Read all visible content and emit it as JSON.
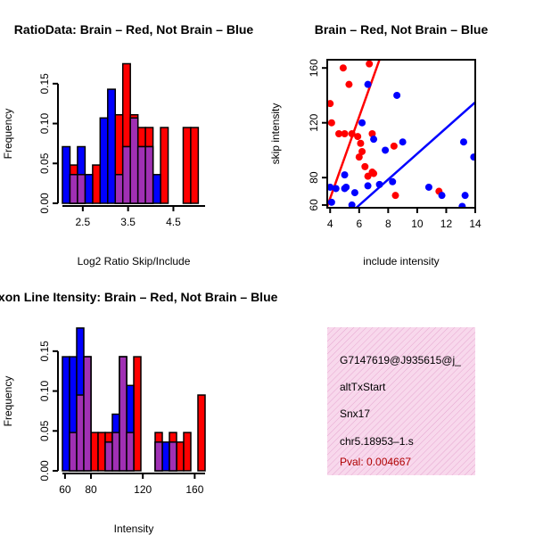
{
  "colors": {
    "red": "#ff0000",
    "blue": "#0000ff",
    "overlap": "#a030b4",
    "info_bg": "#f8d8ec",
    "info_hatch": "#e6a6d0",
    "pval": "#b00000"
  },
  "chart_data": [
    {
      "id": "ratio_hist",
      "type": "bar",
      "title": "RatioData: Brain – Red, Not Brain – Blue",
      "xlabel": "Log2 Ratio Skip/Include",
      "ylabel": "Frequency",
      "xlim": [
        2.05,
        5.2
      ],
      "ylim": [
        0,
        0.18
      ],
      "bin_width": 0.167,
      "bin_starts": [
        2.05,
        2.217,
        2.383,
        2.55,
        2.717,
        2.883,
        3.05,
        3.217,
        3.383,
        3.55,
        3.717,
        3.883,
        4.05,
        4.217,
        4.383,
        4.55,
        4.717,
        4.883
      ],
      "xticks": [
        "2.5",
        "3.5",
        "4.5"
      ],
      "xtick_values": [
        2.5,
        3.5,
        4.5
      ],
      "yticks": [
        "0.00",
        "0.05",
        "0.10",
        "0.15"
      ],
      "ytick_values": [
        0,
        0.05,
        0.1,
        0.15
      ],
      "series": [
        {
          "name": "Brain",
          "color": "red",
          "values": [
            0,
            0.048,
            0.036,
            0,
            0.048,
            0,
            0,
            0.111,
            0.175,
            0.111,
            0.095,
            0.095,
            0,
            0.095,
            0,
            0,
            0.095,
            0.095
          ]
        },
        {
          "name": "Not Brain",
          "color": "blue",
          "values": [
            0.071,
            0.036,
            0.071,
            0.036,
            0,
            0.107,
            0.143,
            0.036,
            0.071,
            0.107,
            0.071,
            0.071,
            0.036,
            0,
            0,
            0,
            0,
            0
          ]
        }
      ]
    },
    {
      "id": "intensity_scatter",
      "type": "scatter",
      "title": "Brain – Red, Not Brain – Blue",
      "xlabel": "include intensity",
      "ylabel": "skip intensity",
      "xlim": [
        3.8,
        14
      ],
      "ylim": [
        58,
        166
      ],
      "xticks": [
        "4",
        "6",
        "8",
        "10",
        "12",
        "14"
      ],
      "xtick_values": [
        4,
        6,
        8,
        10,
        12,
        14
      ],
      "yticks": [
        "60",
        "80",
        "120",
        "160"
      ],
      "ytick_values": [
        60,
        80,
        120,
        160
      ],
      "series": [
        {
          "name": "Brain",
          "color": "red",
          "x": [
            4.0,
            4.1,
            4.6,
            4.9,
            5.3,
            5.0,
            5.5,
            5.9,
            6.1,
            6.2,
            6.0,
            6.4,
            6.6,
            6.9,
            7.0,
            6.7,
            8.4,
            8.5,
            11.5,
            6.9
          ],
          "y": [
            134,
            120,
            112,
            160,
            148,
            112,
            112,
            110,
            105,
            99,
            95,
            88,
            81,
            84,
            83,
            163,
            103,
            67,
            70,
            112
          ],
          "fit": [
            [
              3.8,
              59
            ],
            [
              7.4,
              166
            ]
          ]
        },
        {
          "name": "Not Brain",
          "color": "blue",
          "x": [
            4.0,
            4.1,
            4.4,
            5.0,
            5.1,
            5.7,
            6.2,
            6.6,
            7.0,
            7.8,
            8.6,
            9.0,
            8.3,
            7.4,
            6.6,
            10.8,
            11.7,
            13.1,
            13.2,
            13.3,
            13.9,
            5.5,
            5.0
          ],
          "y": [
            73,
            62,
            72,
            72,
            73,
            69,
            120,
            148,
            108,
            100,
            140,
            106,
            77,
            75,
            74,
            73,
            67,
            59,
            106,
            67,
            95,
            60,
            82
          ],
          "fit": [
            [
              5.8,
              58
            ],
            [
              14,
              135
            ]
          ]
        }
      ]
    },
    {
      "id": "intensity_hist",
      "type": "bar",
      "title": "Exon Line Itensity: Brain – Red, Not Brain – Blue",
      "xlabel": "Intensity",
      "ylabel": "Frequency",
      "xlim": [
        58,
        168
      ],
      "ylim": [
        0,
        0.18
      ],
      "bin_width": 5.5,
      "bin_starts": [
        58,
        63.5,
        69,
        74.5,
        80,
        85.5,
        91,
        96.5,
        102,
        107.5,
        113,
        118.5,
        124,
        129.5,
        135,
        140.5,
        146,
        151.5,
        157,
        162.5
      ],
      "xticks": [
        "60",
        "80",
        "120",
        "160"
      ],
      "xtick_values": [
        60,
        80,
        120,
        160
      ],
      "yticks": [
        "0.00",
        "0.05",
        "0.10",
        "0.15"
      ],
      "ytick_values": [
        0,
        0.05,
        0.1,
        0.15
      ],
      "series": [
        {
          "name": "Brain",
          "color": "red",
          "values": [
            0,
            0.048,
            0.095,
            0.143,
            0.048,
            0.048,
            0.048,
            0.048,
            0.143,
            0.048,
            0.143,
            0,
            0,
            0.048,
            0,
            0.048,
            0.036,
            0.048,
            0,
            0.095
          ]
        },
        {
          "name": "Not Brain",
          "color": "blue",
          "values": [
            0.143,
            0.143,
            0.179,
            0.143,
            0,
            0,
            0.036,
            0.071,
            0.143,
            0.107,
            0,
            0,
            0,
            0.036,
            0.036,
            0.036,
            0,
            0,
            0,
            0
          ]
        }
      ]
    }
  ],
  "info_panel": {
    "id": "G7147619@J935615@j_",
    "event_type": "altTxStart",
    "gene": "Snx17",
    "location": "chr5.18953–1.s",
    "pval": "Pval: 0.004667"
  }
}
